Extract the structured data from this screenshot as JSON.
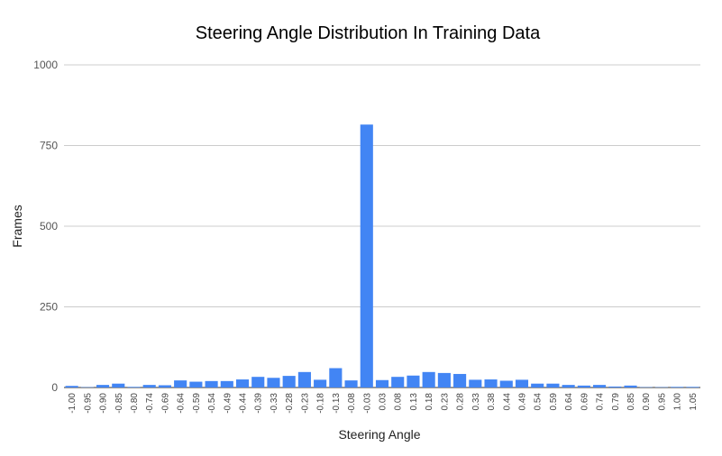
{
  "chart_data": {
    "type": "bar",
    "title": "Steering Angle Distribution In Training Data",
    "xlabel": "Steering Angle",
    "ylabel": "Frames",
    "ylim": [
      0,
      1000
    ],
    "yticks": [
      0,
      250,
      500,
      750,
      1000
    ],
    "grid": true,
    "bar_color": "#4285f4",
    "categories": [
      "-1.00",
      "-0.95",
      "-0.90",
      "-0.85",
      "-0.80",
      "-0.74",
      "-0.69",
      "-0.64",
      "-0.59",
      "-0.54",
      "-0.49",
      "-0.44",
      "-0.39",
      "-0.33",
      "-0.28",
      "-0.23",
      "-0.18",
      "-0.13",
      "-0.08",
      "-0.03",
      "0.03",
      "0.08",
      "0.13",
      "0.18",
      "0.23",
      "0.28",
      "0.33",
      "0.38",
      "0.44",
      "0.49",
      "0.54",
      "0.59",
      "0.64",
      "0.69",
      "0.74",
      "0.79",
      "0.85",
      "0.90",
      "0.95",
      "1.00",
      "1.05"
    ],
    "x_tick_labels": [
      "-1.00",
      "-0.95",
      "-0.90",
      "-0.85",
      "-0.80",
      "-0.74",
      "-0.69",
      "-0.64",
      "-0.59",
      "-0.54",
      "-0.49",
      "-0.44",
      "-0.39",
      "-0.33",
      "-0.28",
      "-0.23",
      "-0.18",
      "-0.13",
      "-0.08",
      "-0.03",
      "0.03",
      "0.08",
      "0.13",
      "0.18",
      "0.23",
      "0.28",
      "0.33",
      "0.38",
      "0.44",
      "0.49",
      "0.54",
      "0.59",
      "0.64",
      "0.69",
      "0.74",
      "0.79",
      "0.85",
      "0.90",
      "0.95",
      "1.00",
      "1.05"
    ],
    "values": [
      5,
      1,
      8,
      12,
      2,
      8,
      7,
      22,
      18,
      20,
      20,
      25,
      33,
      30,
      36,
      48,
      24,
      60,
      22,
      815,
      23,
      33,
      37,
      48,
      45,
      42,
      24,
      25,
      21,
      24,
      12,
      12,
      8,
      6,
      8,
      3,
      6,
      1,
      1,
      2,
      2
    ]
  }
}
